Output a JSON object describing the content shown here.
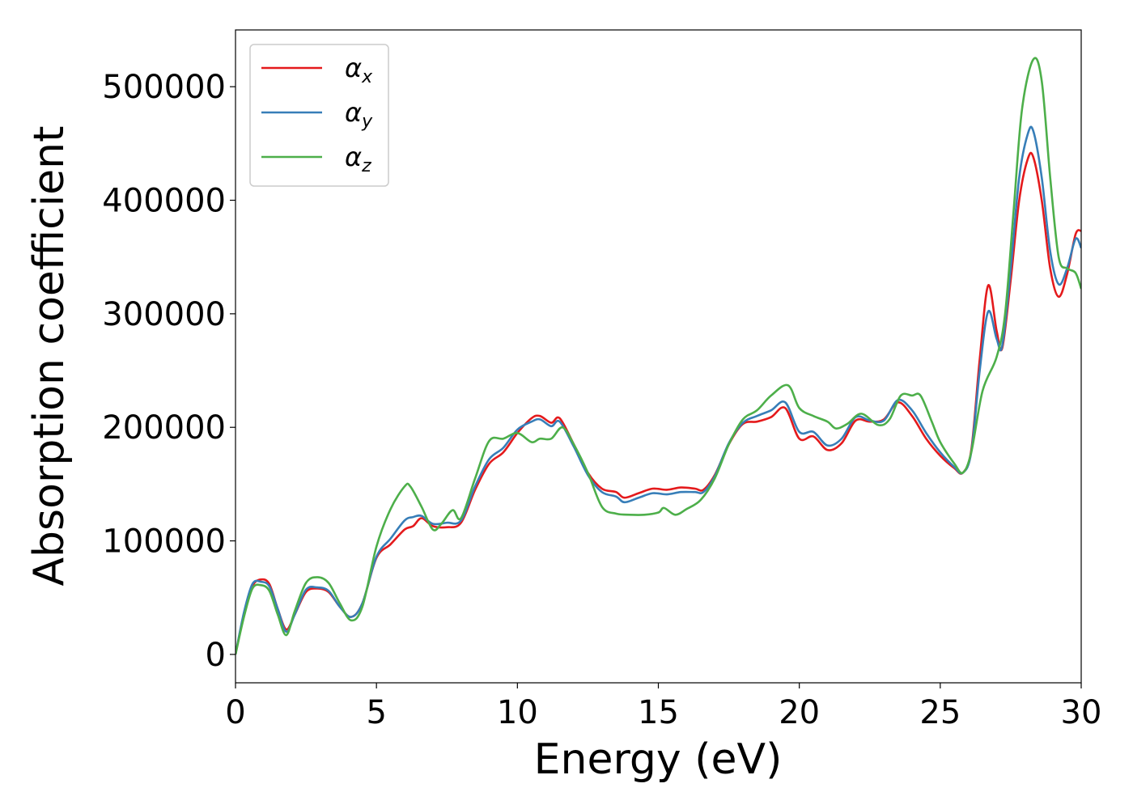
{
  "chart_data": {
    "type": "line",
    "xlabel": "Energy (eV)",
    "ylabel": "Absorption coefficient",
    "xlim": [
      0,
      30
    ],
    "ylim": [
      -25000,
      550000
    ],
    "xticks": [
      0,
      5,
      10,
      15,
      20,
      25,
      30
    ],
    "yticks": [
      0,
      100000,
      200000,
      300000,
      400000,
      500000
    ],
    "grid": false,
    "legend_position": "top-left",
    "series": [
      {
        "name": "αx",
        "label_base": "α",
        "label_sub": "x",
        "color": "#e41a1c",
        "points": [
          [
            0,
            0
          ],
          [
            0.3,
            35000
          ],
          [
            0.6,
            60000
          ],
          [
            0.9,
            66000
          ],
          [
            1.2,
            62000
          ],
          [
            1.5,
            40000
          ],
          [
            1.8,
            22000
          ],
          [
            2.1,
            35000
          ],
          [
            2.5,
            55000
          ],
          [
            2.9,
            58000
          ],
          [
            3.3,
            55000
          ],
          [
            3.7,
            42000
          ],
          [
            4.1,
            33000
          ],
          [
            4.5,
            45000
          ],
          [
            5.0,
            85000
          ],
          [
            5.5,
            97000
          ],
          [
            6.0,
            110000
          ],
          [
            6.3,
            113000
          ],
          [
            6.6,
            120000
          ],
          [
            7.0,
            113000
          ],
          [
            7.5,
            112000
          ],
          [
            8.0,
            116000
          ],
          [
            8.5,
            145000
          ],
          [
            9.0,
            168000
          ],
          [
            9.5,
            178000
          ],
          [
            10.0,
            195000
          ],
          [
            10.5,
            208000
          ],
          [
            10.8,
            210000
          ],
          [
            11.2,
            204000
          ],
          [
            11.5,
            208000
          ],
          [
            12.0,
            185000
          ],
          [
            12.5,
            160000
          ],
          [
            13.0,
            146000
          ],
          [
            13.5,
            143000
          ],
          [
            13.8,
            138000
          ],
          [
            14.3,
            142000
          ],
          [
            14.8,
            146000
          ],
          [
            15.3,
            145000
          ],
          [
            15.8,
            147000
          ],
          [
            16.3,
            146000
          ],
          [
            16.6,
            145000
          ],
          [
            17.0,
            158000
          ],
          [
            17.5,
            185000
          ],
          [
            18.0,
            203000
          ],
          [
            18.5,
            205000
          ],
          [
            19.0,
            209000
          ],
          [
            19.5,
            217000
          ],
          [
            20.0,
            190000
          ],
          [
            20.5,
            192000
          ],
          [
            21.0,
            180000
          ],
          [
            21.5,
            186000
          ],
          [
            22.0,
            206000
          ],
          [
            22.5,
            205000
          ],
          [
            23.0,
            207000
          ],
          [
            23.5,
            222000
          ],
          [
            24.0,
            210000
          ],
          [
            24.5,
            190000
          ],
          [
            25.0,
            175000
          ],
          [
            25.5,
            164000
          ],
          [
            25.8,
            160000
          ],
          [
            26.1,
            180000
          ],
          [
            26.4,
            260000
          ],
          [
            26.7,
            325000
          ],
          [
            27.0,
            285000
          ],
          [
            27.2,
            270000
          ],
          [
            27.5,
            330000
          ],
          [
            27.8,
            400000
          ],
          [
            28.1,
            436000
          ],
          [
            28.3,
            438000
          ],
          [
            28.6,
            400000
          ],
          [
            28.9,
            340000
          ],
          [
            29.2,
            315000
          ],
          [
            29.5,
            335000
          ],
          [
            29.8,
            370000
          ],
          [
            30.0,
            373000
          ]
        ]
      },
      {
        "name": "αy",
        "label_base": "α",
        "label_sub": "y",
        "color": "#377eb8",
        "points": [
          [
            0,
            0
          ],
          [
            0.3,
            37000
          ],
          [
            0.6,
            62000
          ],
          [
            0.9,
            64000
          ],
          [
            1.2,
            60000
          ],
          [
            1.5,
            40000
          ],
          [
            1.8,
            20000
          ],
          [
            2.1,
            35000
          ],
          [
            2.5,
            57000
          ],
          [
            2.9,
            59000
          ],
          [
            3.3,
            56000
          ],
          [
            3.7,
            42000
          ],
          [
            4.1,
            33000
          ],
          [
            4.5,
            45000
          ],
          [
            5.0,
            86000
          ],
          [
            5.5,
            102000
          ],
          [
            6.0,
            118000
          ],
          [
            6.3,
            121000
          ],
          [
            6.6,
            122000
          ],
          [
            7.0,
            115000
          ],
          [
            7.5,
            116000
          ],
          [
            8.0,
            118000
          ],
          [
            8.5,
            148000
          ],
          [
            9.0,
            172000
          ],
          [
            9.5,
            182000
          ],
          [
            10.0,
            198000
          ],
          [
            10.5,
            205000
          ],
          [
            10.8,
            207000
          ],
          [
            11.2,
            201000
          ],
          [
            11.5,
            205000
          ],
          [
            12.0,
            183000
          ],
          [
            12.5,
            158000
          ],
          [
            13.0,
            143000
          ],
          [
            13.5,
            139000
          ],
          [
            13.8,
            134000
          ],
          [
            14.3,
            138000
          ],
          [
            14.8,
            142000
          ],
          [
            15.3,
            141000
          ],
          [
            15.8,
            143000
          ],
          [
            16.3,
            143000
          ],
          [
            16.6,
            143000
          ],
          [
            17.0,
            157000
          ],
          [
            17.5,
            186000
          ],
          [
            18.0,
            204000
          ],
          [
            18.5,
            210000
          ],
          [
            19.0,
            215000
          ],
          [
            19.5,
            222000
          ],
          [
            20.0,
            196000
          ],
          [
            20.5,
            196000
          ],
          [
            21.0,
            184000
          ],
          [
            21.5,
            190000
          ],
          [
            22.0,
            209000
          ],
          [
            22.5,
            206000
          ],
          [
            23.0,
            206000
          ],
          [
            23.5,
            224000
          ],
          [
            24.0,
            215000
          ],
          [
            24.5,
            195000
          ],
          [
            25.0,
            178000
          ],
          [
            25.5,
            165000
          ],
          [
            25.8,
            160000
          ],
          [
            26.1,
            178000
          ],
          [
            26.4,
            250000
          ],
          [
            26.7,
            302000
          ],
          [
            27.0,
            278000
          ],
          [
            27.2,
            272000
          ],
          [
            27.5,
            340000
          ],
          [
            27.8,
            420000
          ],
          [
            28.1,
            458000
          ],
          [
            28.3,
            461000
          ],
          [
            28.6,
            420000
          ],
          [
            28.9,
            355000
          ],
          [
            29.2,
            326000
          ],
          [
            29.5,
            340000
          ],
          [
            29.8,
            366000
          ],
          [
            30.0,
            358000
          ]
        ]
      },
      {
        "name": "αz",
        "label_base": "α",
        "label_sub": "z",
        "color": "#4daf4a",
        "points": [
          [
            0,
            0
          ],
          [
            0.3,
            33000
          ],
          [
            0.6,
            58000
          ],
          [
            0.9,
            61000
          ],
          [
            1.2,
            56000
          ],
          [
            1.5,
            35000
          ],
          [
            1.8,
            17000
          ],
          [
            2.1,
            38000
          ],
          [
            2.5,
            63000
          ],
          [
            2.9,
            68000
          ],
          [
            3.3,
            63000
          ],
          [
            3.7,
            45000
          ],
          [
            4.1,
            30000
          ],
          [
            4.5,
            42000
          ],
          [
            5.0,
            95000
          ],
          [
            5.5,
            128000
          ],
          [
            6.0,
            148000
          ],
          [
            6.2,
            148000
          ],
          [
            6.6,
            130000
          ],
          [
            7.0,
            110000
          ],
          [
            7.3,
            115000
          ],
          [
            7.7,
            127000
          ],
          [
            8.0,
            120000
          ],
          [
            8.5,
            155000
          ],
          [
            9.0,
            188000
          ],
          [
            9.5,
            190000
          ],
          [
            10.0,
            195000
          ],
          [
            10.5,
            187000
          ],
          [
            10.8,
            190000
          ],
          [
            11.2,
            190000
          ],
          [
            11.6,
            200000
          ],
          [
            12.0,
            185000
          ],
          [
            12.5,
            160000
          ],
          [
            13.0,
            130000
          ],
          [
            13.5,
            124000
          ],
          [
            14.0,
            123000
          ],
          [
            14.5,
            123000
          ],
          [
            15.0,
            125000
          ],
          [
            15.2,
            129000
          ],
          [
            15.6,
            123000
          ],
          [
            16.0,
            128000
          ],
          [
            16.5,
            136000
          ],
          [
            17.0,
            155000
          ],
          [
            17.5,
            185000
          ],
          [
            18.0,
            207000
          ],
          [
            18.5,
            215000
          ],
          [
            19.0,
            228000
          ],
          [
            19.6,
            237000
          ],
          [
            20.0,
            217000
          ],
          [
            20.5,
            210000
          ],
          [
            21.0,
            205000
          ],
          [
            21.3,
            199000
          ],
          [
            21.7,
            203000
          ],
          [
            22.2,
            212000
          ],
          [
            22.8,
            202000
          ],
          [
            23.2,
            207000
          ],
          [
            23.6,
            228000
          ],
          [
            24.0,
            228000
          ],
          [
            24.3,
            228000
          ],
          [
            24.7,
            205000
          ],
          [
            25.0,
            187000
          ],
          [
            25.5,
            168000
          ],
          [
            25.8,
            160000
          ],
          [
            26.1,
            178000
          ],
          [
            26.5,
            232000
          ],
          [
            27.0,
            262000
          ],
          [
            27.3,
            300000
          ],
          [
            27.6,
            390000
          ],
          [
            27.9,
            480000
          ],
          [
            28.3,
            524000
          ],
          [
            28.6,
            505000
          ],
          [
            28.9,
            420000
          ],
          [
            29.2,
            350000
          ],
          [
            29.5,
            340000
          ],
          [
            29.8,
            336000
          ],
          [
            30.0,
            322000
          ]
        ]
      }
    ]
  }
}
